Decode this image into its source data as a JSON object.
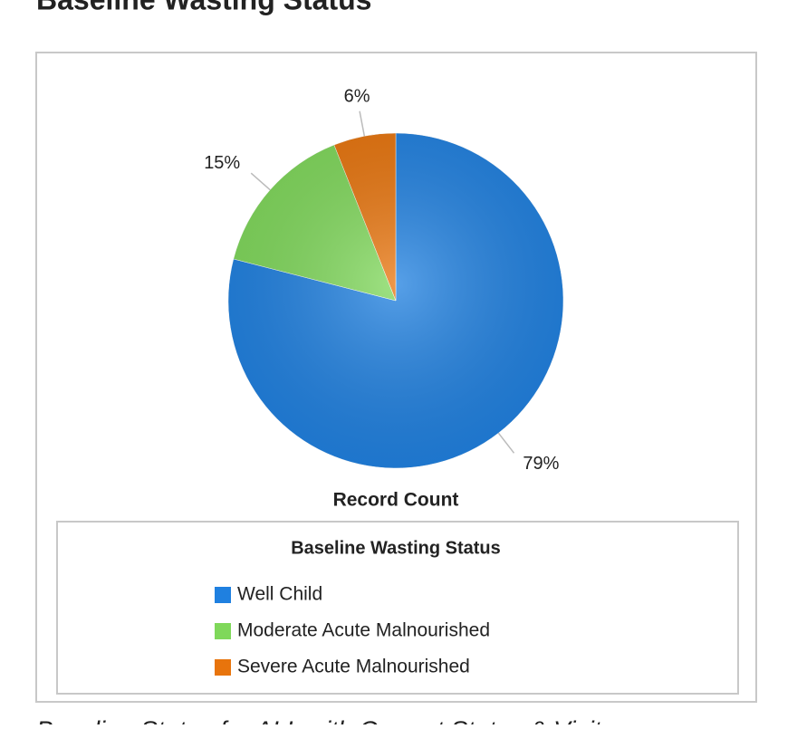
{
  "heading": "Baseline Wasting Status",
  "caption": "Baseline Status for ALL with Current Status & Visits",
  "chart_data": {
    "type": "pie",
    "axis_label": "Record Count",
    "legend_title": "Baseline Wasting Status",
    "categories": [
      "Well Child",
      "Moderate Acute Malnourished",
      "Severe Acute Malnourished"
    ],
    "values": [
      79,
      15,
      6
    ],
    "value_labels": [
      "79%",
      "15%",
      "6%"
    ],
    "colors": [
      "#1f80e0",
      "#7fd85a",
      "#e8740c"
    ],
    "legend": "bottom"
  }
}
